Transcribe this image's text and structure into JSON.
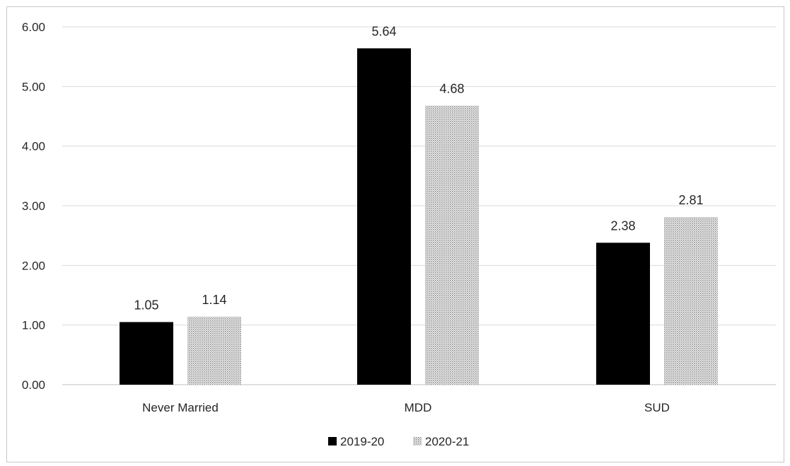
{
  "chart_data": {
    "type": "bar",
    "categories": [
      "Never Married",
      "MDD",
      "SUD"
    ],
    "series": [
      {
        "name": "2019-20",
        "values": [
          1.05,
          5.64,
          2.38
        ],
        "color": "#000000",
        "pattern": "solid"
      },
      {
        "name": "2020-21",
        "values": [
          1.14,
          4.68,
          2.81
        ],
        "color": "#bdbdbd",
        "pattern": "dotted"
      }
    ],
    "yticks": [
      "0.00",
      "1.00",
      "2.00",
      "3.00",
      "4.00",
      "5.00",
      "6.00"
    ],
    "ylim": [
      0,
      6
    ],
    "grid": true,
    "legend_position": "bottom"
  }
}
